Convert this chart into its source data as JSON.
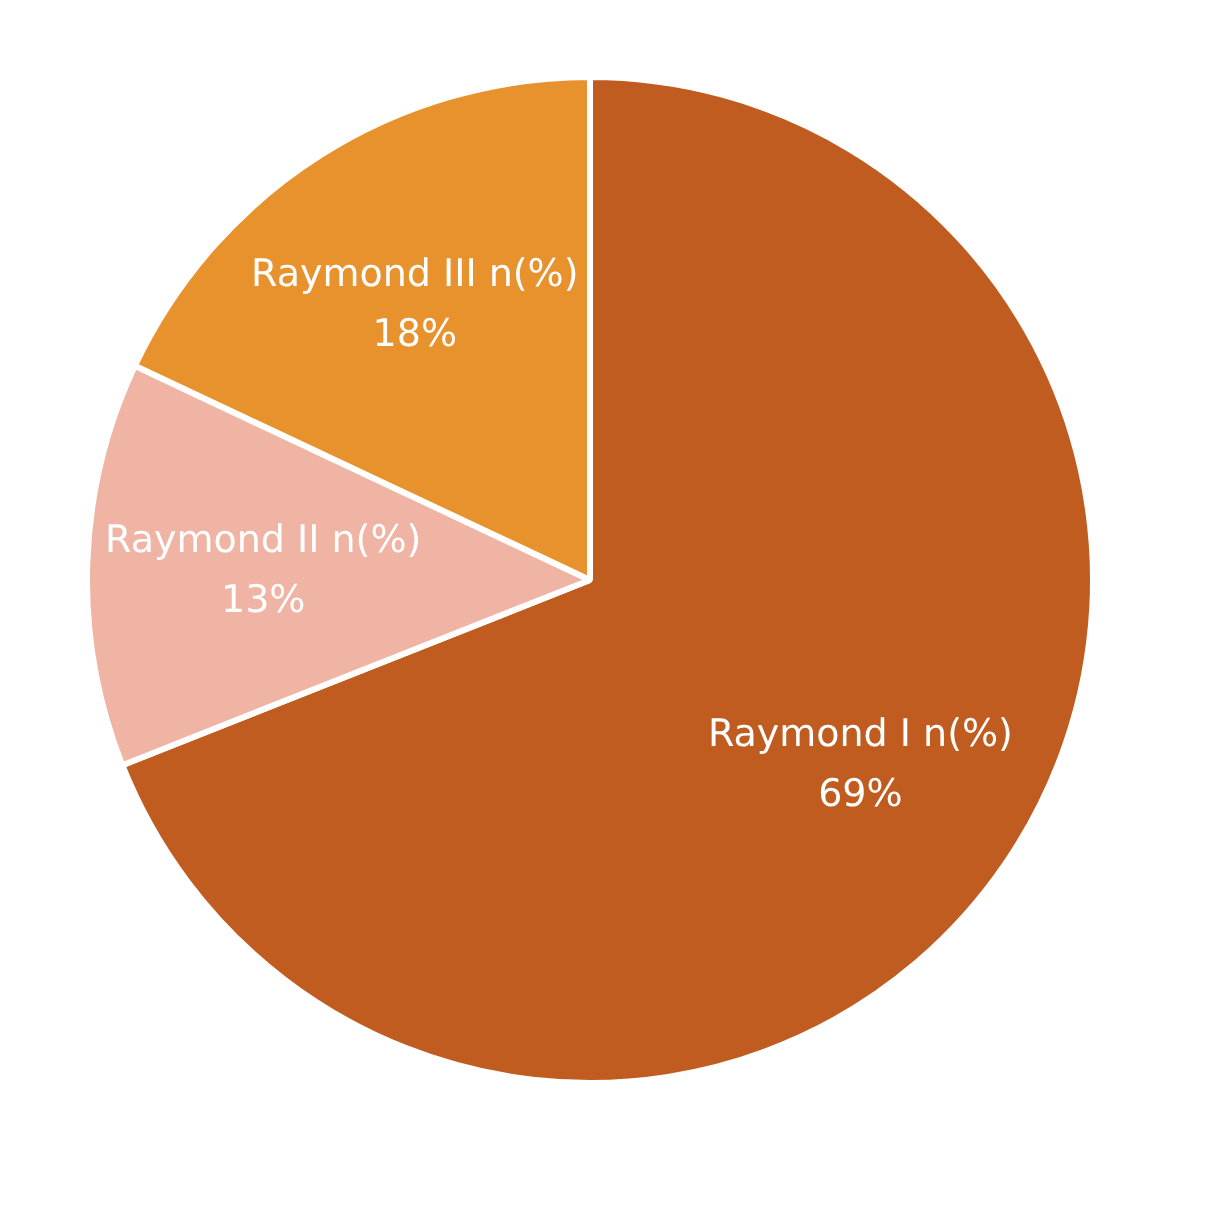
{
  "chart_data": {
    "type": "pie",
    "categories": [
      "Raymond I n(%)",
      "Raymond II n(%)",
      "Raymond III n(%)"
    ],
    "values": [
      69,
      13,
      18
    ],
    "colors": [
      "#c05c20",
      "#f0b4a4",
      "#e8922e"
    ],
    "value_labels": [
      "69%",
      "13%",
      "18%"
    ],
    "legend": false
  }
}
